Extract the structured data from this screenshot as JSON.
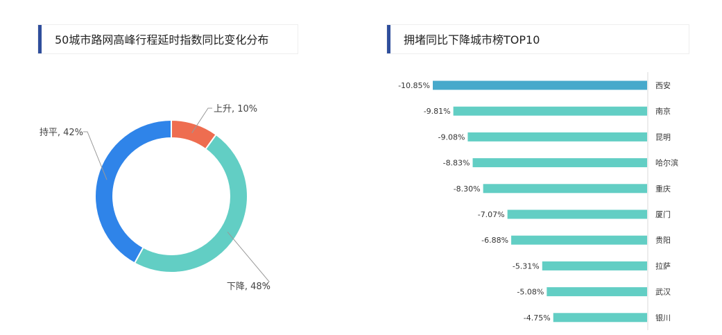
{
  "left_panel": {
    "title": "50城市路网高峰行程延时指数同比变化分布"
  },
  "right_panel": {
    "title": "拥堵同比下降城市榜TOP10"
  },
  "chart_data": [
    {
      "type": "pie",
      "title": "50城市路网高峰行程延时指数同比变化分布",
      "donut": true,
      "slices": [
        {
          "label": "上升",
          "value": 10,
          "display": "上升, 10%",
          "color": "#ee6d50"
        },
        {
          "label": "下降",
          "value": 48,
          "display": "下降, 48%",
          "color": "#62cec4"
        },
        {
          "label": "持平",
          "value": 42,
          "display": "持平, 42%",
          "color": "#2f84e9"
        }
      ]
    },
    {
      "type": "bar",
      "orientation": "horizontal",
      "title": "拥堵同比下降城市榜TOP10",
      "categories": [
        "西安",
        "南京",
        "昆明",
        "哈尔滨",
        "重庆",
        "厦门",
        "贵阳",
        "拉萨",
        "武汉",
        "银川"
      ],
      "values": [
        -10.85,
        -9.81,
        -9.08,
        -8.83,
        -8.3,
        -7.07,
        -6.88,
        -5.31,
        -5.08,
        -4.75
      ],
      "value_labels": [
        "-10.85%",
        "-9.81%",
        "-9.08%",
        "-8.83%",
        "-8.30%",
        "-7.07%",
        "-6.88%",
        "-5.31%",
        "-5.08%",
        "-4.75%"
      ],
      "colors": {
        "top": "#47a9cb",
        "rest": "#62cec4"
      }
    }
  ]
}
